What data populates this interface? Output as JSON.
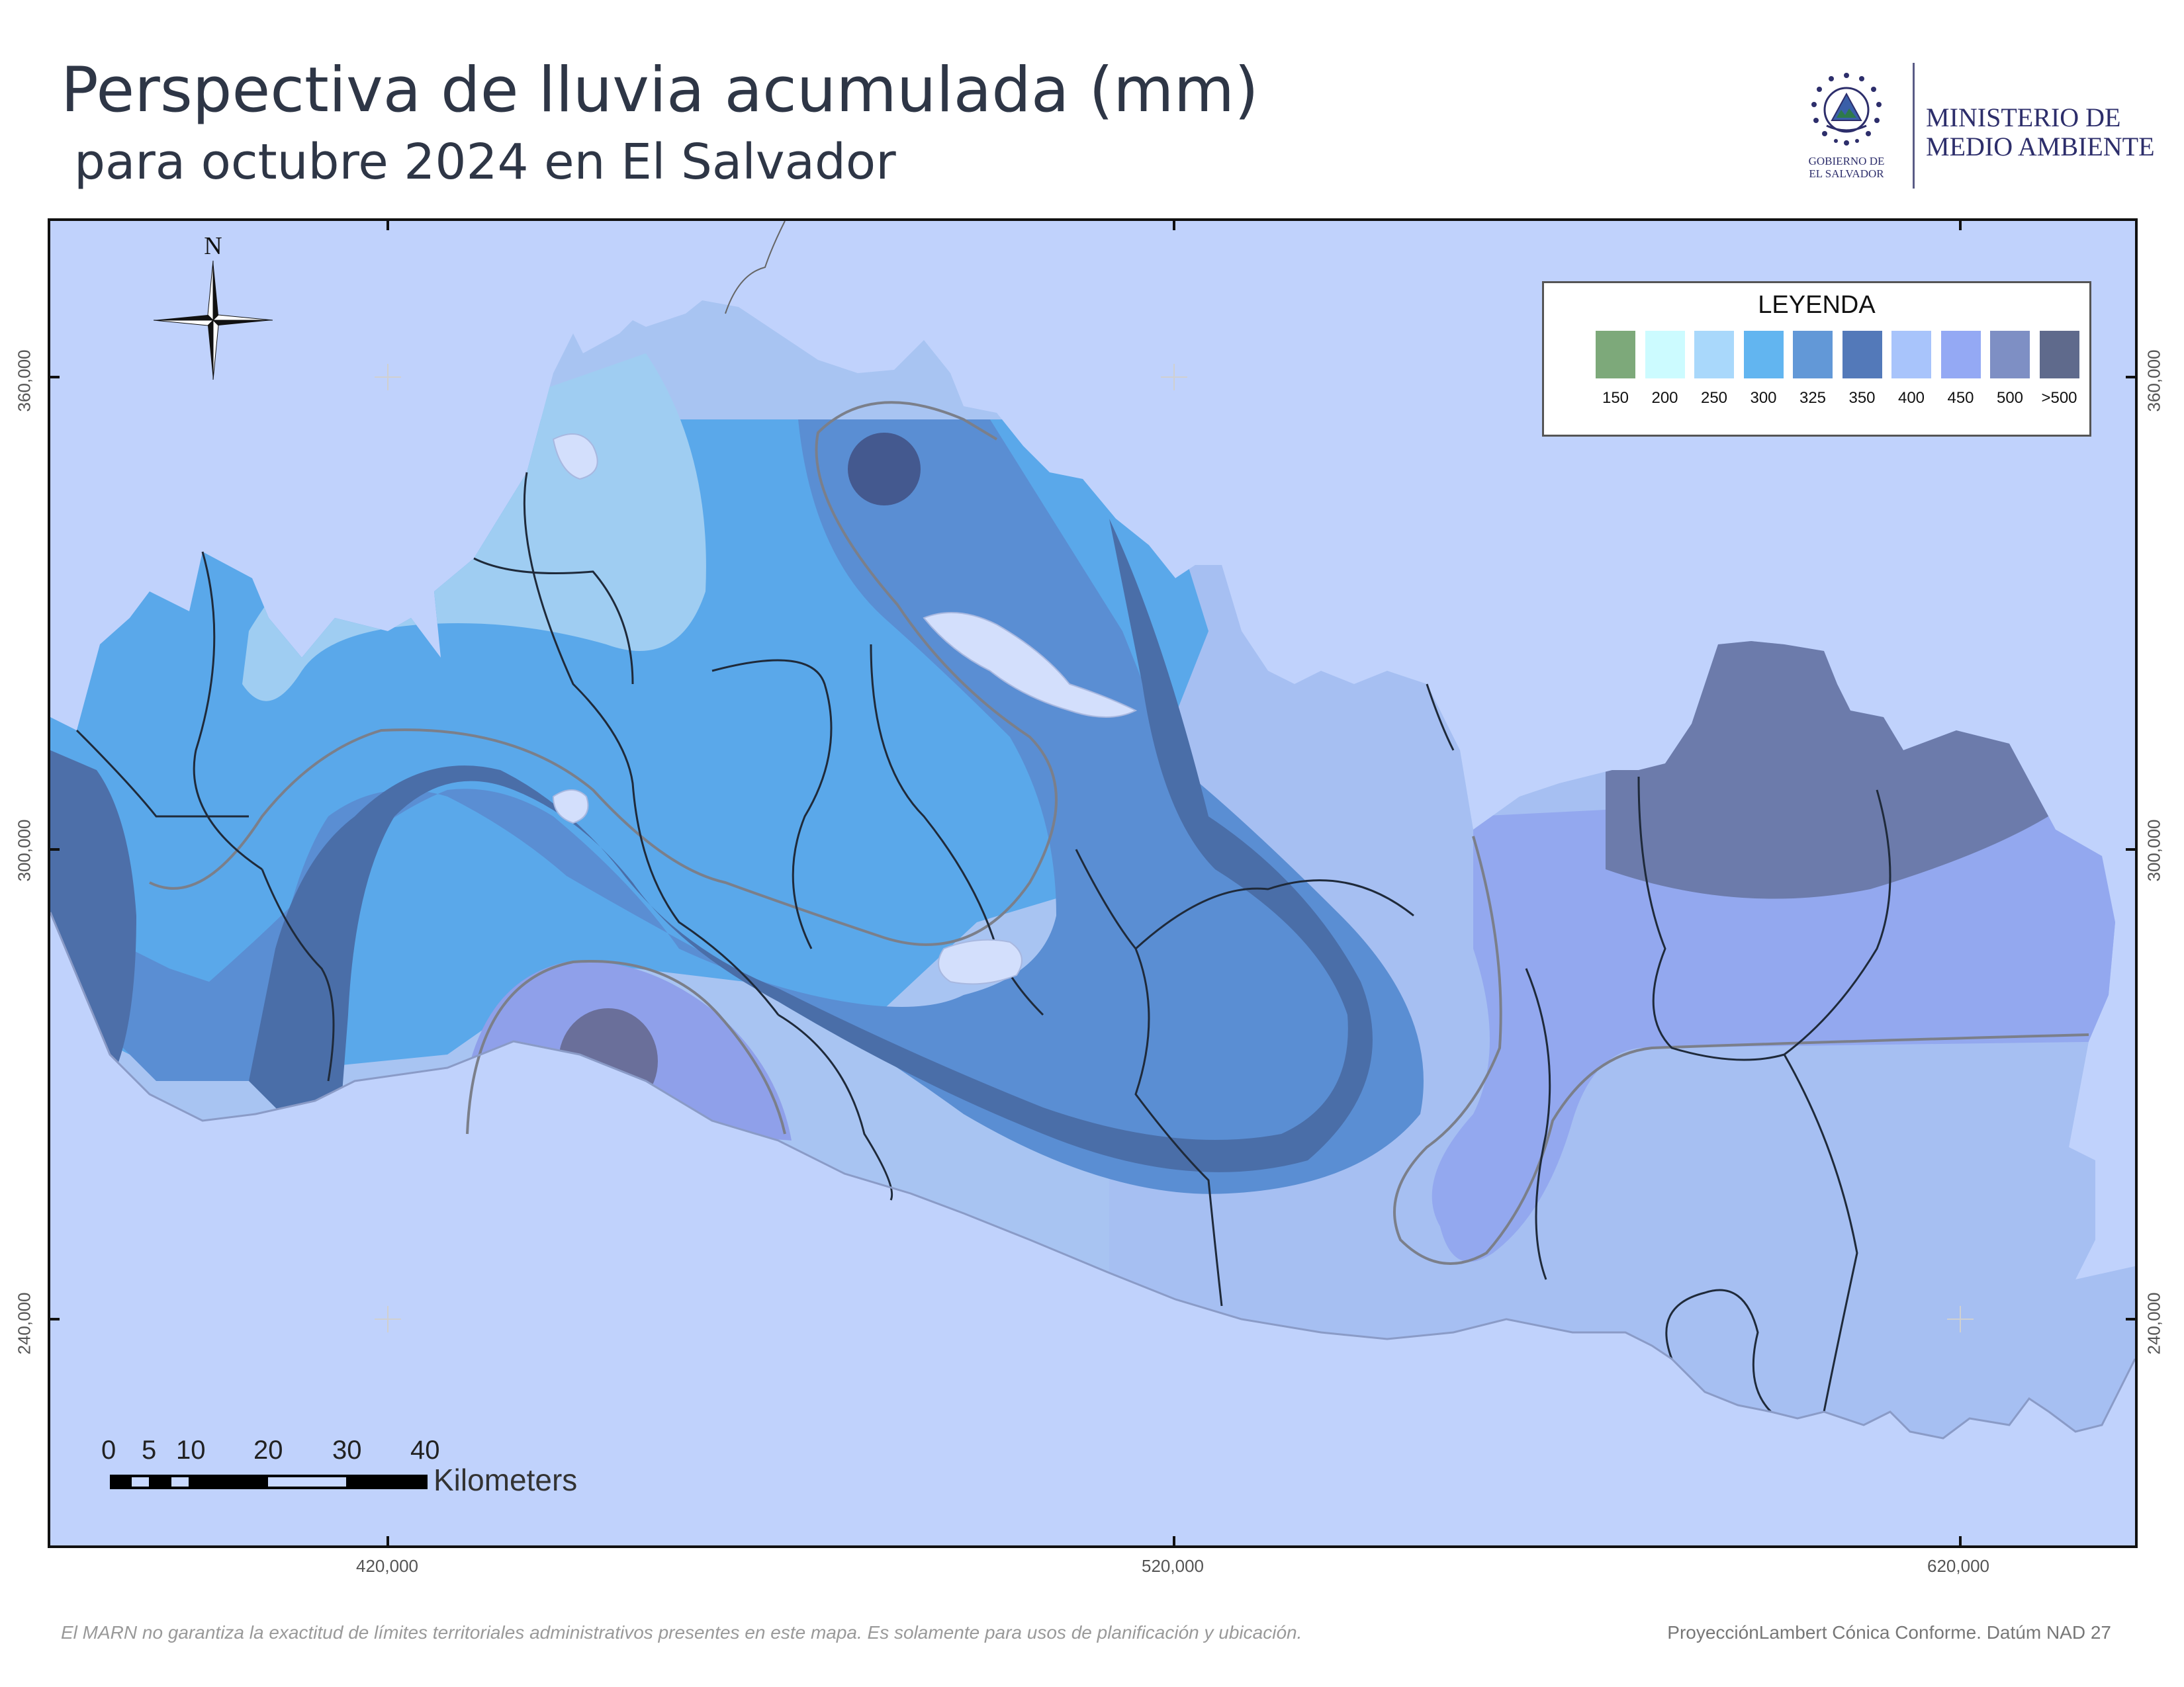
{
  "title": "Perspectiva de lluvia acumulada (mm)",
  "subtitle": "para octubre 2024 en El Salvador",
  "logo": {
    "government_line1": "GOBIERNO DE",
    "government_line2": "EL SALVADOR",
    "ministry_line1": "MINISTERIO DE",
    "ministry_line2": "MEDIO AMBIENTE"
  },
  "map": {
    "north_label": "N",
    "x_labels": [
      "420,000",
      "520,000",
      "620,000"
    ],
    "y_labels": [
      "360,000",
      "300,000",
      "240,000"
    ],
    "ocean_color": "#c0d2fc"
  },
  "legend": {
    "title": "LEYENDA",
    "items": [
      {
        "label": "150",
        "color": "#7da97a"
      },
      {
        "label": "200",
        "color": "#ccfbff"
      },
      {
        "label": "250",
        "color": "#a9d8fb"
      },
      {
        "label": "300",
        "color": "#62b5f0"
      },
      {
        "label": "325",
        "color": "#6298d7"
      },
      {
        "label": "350",
        "color": "#5379b9"
      },
      {
        "label": "400",
        "color": "#a8c4fb"
      },
      {
        "label": "450",
        "color": "#94a9f4"
      },
      {
        "label": "500",
        "color": "#7e8fc4"
      },
      {
        "label": ">500",
        "color": "#5f6a8c"
      }
    ]
  },
  "scale_bar": {
    "ticks": [
      "0",
      "5",
      "10",
      "20",
      "30",
      "40"
    ],
    "unit": "Kilometers"
  },
  "footnote": "El MARN no garantiza la exactitud de límites territoriales administrativos presentes en este mapa. Es solamente para usos de planificación y ubicación.",
  "projection": "ProyecciónLambert Cónica Conforme. Datúm NAD 27"
}
